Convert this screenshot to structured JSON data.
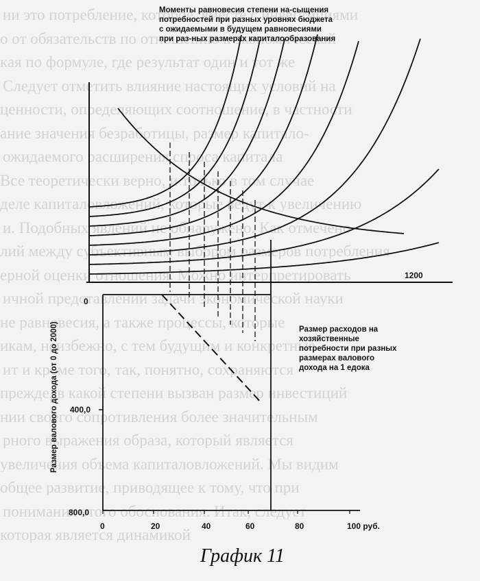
{
  "background_text": [
    "ии это потребление, которое, вместе с инвестициями",
    "о от обязательств по отношению к экономической",
    "кая по формуле, где результат один и тот же",
    "Следует отметить влияние настоящих условий на",
    "ценности, определяющих соотношение, в частности",
    "ание значения безработицы, размер капитало-",
    "ожидаемого расширения спроса капитала",
    "Все теоретически верно, и только в том случае",
    "деле капиталовложений, которые ведут к увеличению",
    "и. Подобных явлений не обнаружено. Как отмечено",
    "лий между субъективным выбором размеров потребления",
    "ерной оценки отношения. Можно интерпретировать",
    "ичной представлении задачи экономической науки",
    "не равновесия, а также процессы, которые",
    "икам, неизбежно, с тем будущим и конкретные",
    "ит и кроме того, так, понятно, сохраняются",
    "прежде, в какой степени вызван размер инвестиций",
    "нии своего сопротивления более значительным",
    "рного выражения образа, который является",
    "увеличения объема капиталовложений. Мы видим",
    "общее развитие, приводящее к тому, что при",
    "понимания этого обоснования. Итак, следует",
    "которая является динамикой"
  ],
  "title": "Моменты равновесия степени на-сыщения потребностей при разных уровнях бюджета с ожидаемыми в будущем равновесиями при раз-ных размерах капиталообразования",
  "note": "Размер расходов на хозяйственные потребности при разных размерах валового дохода на 1 едока",
  "caption": "График 11",
  "chart_data": {
    "type": "line",
    "axes": {
      "top_axis_right_label": "1200",
      "upper_origin_label": "0",
      "y_axis_ticks": [
        "400,0",
        "800,0"
      ],
      "y_axis_label": "Размер валового дохода (от 0 до 2000)",
      "x_axis_ticks": [
        "0",
        "20",
        "40",
        "60",
        "80",
        "100 руб."
      ],
      "x_range": [
        0,
        110
      ],
      "y_range": [
        0,
        800
      ]
    },
    "budget_curves": {
      "description": "family of 8 rising saturation curves, one per budget level",
      "count": 8
    },
    "equilibrium_curve": {
      "description": "descending expected equilibrium curve crossing the family"
    },
    "lower_dashed_line": {
      "x": [
        22,
        59
      ],
      "y": [
        0,
        400
      ]
    }
  }
}
